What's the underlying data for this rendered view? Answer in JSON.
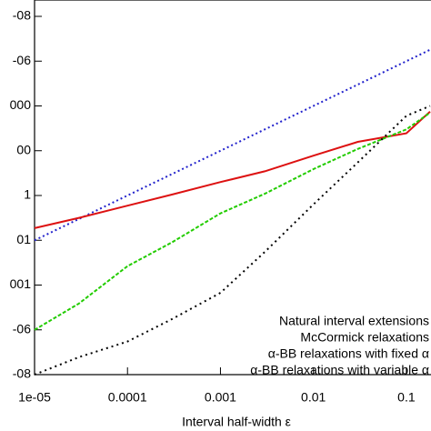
{
  "chart_data": {
    "type": "line",
    "x_label": "Interval half-width ε",
    "x": [
      1e-05,
      3e-05,
      0.0001,
      0.0003,
      0.001,
      0.003,
      0.01,
      0.03,
      0.1,
      0.18
    ],
    "xlim": [
      1e-05,
      0.18
    ],
    "xticks": [
      {
        "value": 1e-05,
        "label": "1e-05"
      },
      0.0001,
      0.001,
      0.01,
      0.1
    ],
    "ylim": [
      1e-08,
      100000000.0
    ],
    "yticks": [
      {
        "value": 100000000.0,
        "label": "-08"
      },
      {
        "value": 1000000.0,
        "label": "-06"
      },
      {
        "value": 10000,
        "label": "000"
      },
      {
        "value": 100,
        "label": "00"
      },
      1,
      {
        "value": 0.01,
        "label": "01"
      },
      {
        "value": 0.0001,
        "label": "001"
      },
      {
        "value": 1e-06,
        "label": "-06"
      },
      {
        "value": 1e-08,
        "label": "-08"
      }
    ],
    "log_x": true,
    "log_y": true,
    "legend": "lower right",
    "series": [
      {
        "name": "Natural interval extensions",
        "color": "#2222cc",
        "dash": "2,3",
        "values": [
          0.01,
          0.09,
          1,
          9,
          100,
          900,
          10000,
          90000,
          1000000,
          3240000
        ]
      },
      {
        "name": "McCormick relaxations",
        "color": "#dd1111",
        "dash": "",
        "values": [
          0.035,
          0.1,
          0.35,
          1.1,
          4,
          12,
          60,
          250,
          600,
          5600
        ]
      },
      {
        "name": "α-BB relaxations with fixed α",
        "color": "#22cc00",
        "dash": "4,2",
        "values": [
          1e-06,
          1.5e-05,
          0.0007,
          0.008,
          0.16,
          1.2,
          15,
          120,
          900,
          5000
        ]
      },
      {
        "name": "α-BB relaxations with variable α",
        "color": "#000000",
        "dash": "2,4",
        "values": [
          1e-08,
          6e-08,
          3e-07,
          3e-06,
          4.5e-05,
          0.003,
          0.4,
          30,
          3600,
          10000
        ]
      }
    ]
  }
}
